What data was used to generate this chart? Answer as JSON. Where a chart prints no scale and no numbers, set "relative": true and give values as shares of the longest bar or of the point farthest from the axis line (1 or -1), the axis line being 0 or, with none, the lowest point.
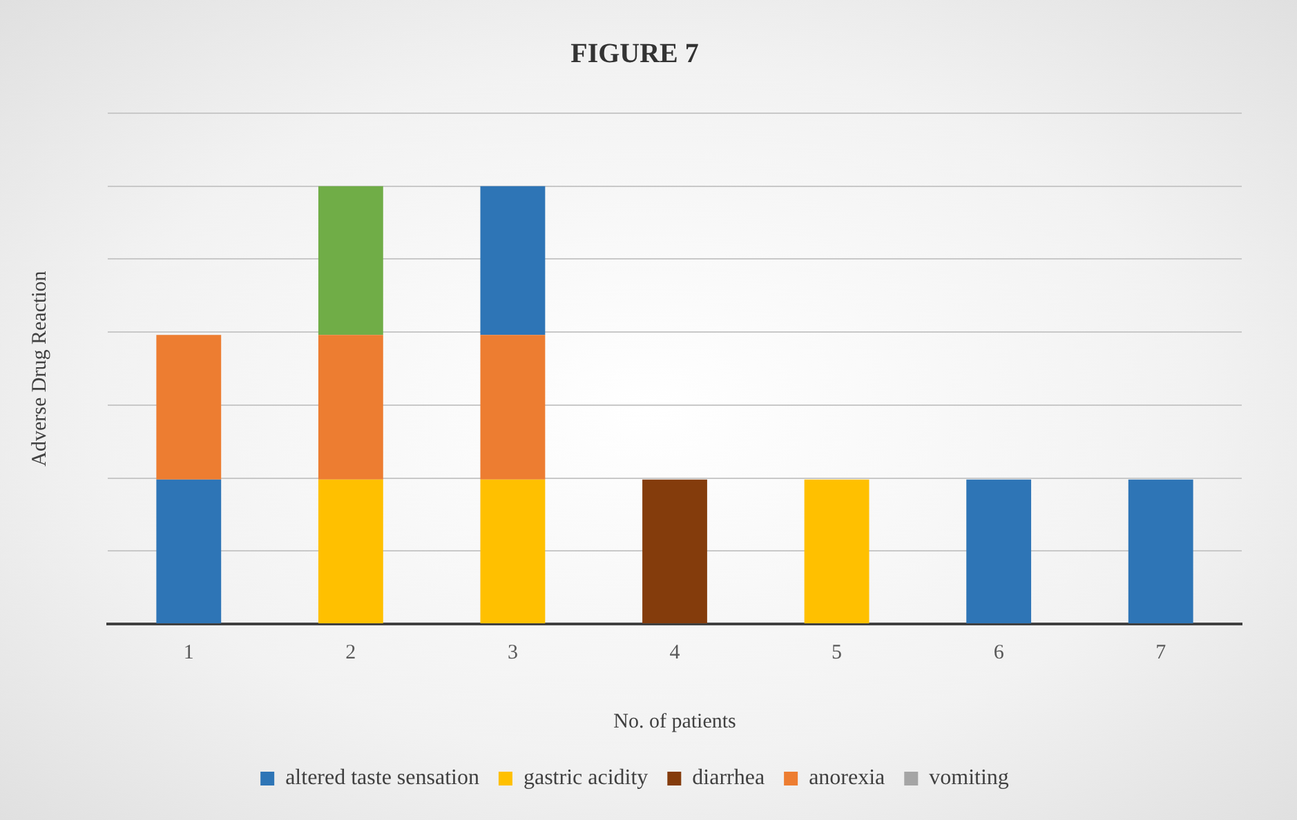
{
  "chart_data": {
    "type": "bar",
    "title": "FIGURE 7",
    "xlabel": "No. of patients",
    "ylabel": "Adverse Drug Reaction",
    "categories": [
      "1",
      "2",
      "3",
      "4",
      "5",
      "6",
      "7"
    ],
    "stacked": true,
    "relative": true,
    "grid": "y",
    "legend": "bottom",
    "series": [
      {
        "name": "altered taste sensation",
        "color": "#2e75b6",
        "values": [
          0.33,
          null,
          null,
          null,
          null,
          0.33,
          0.33
        ]
      },
      {
        "name": "gastric acidity",
        "color": "#ffc000",
        "values": [
          null,
          0.33,
          0.33,
          null,
          0.33,
          null,
          null
        ]
      },
      {
        "name": "diarrhea",
        "color": "#843c0c",
        "values": [
          null,
          null,
          null,
          0.33,
          null,
          null,
          null
        ]
      },
      {
        "name": "anorexia",
        "color": "#ed7d31",
        "values": [
          0.33,
          0.33,
          0.33,
          null,
          null,
          null,
          null
        ]
      },
      {
        "name": "vomiting",
        "color": "#a5a5a5",
        "values": [
          null,
          null,
          null,
          null,
          null,
          null,
          null
        ]
      },
      {
        "color": "#70ad47",
        "values": [
          null,
          0.34,
          null,
          null,
          null,
          null,
          null
        ]
      },
      {
        "color": "#2e75b6",
        "values": [
          null,
          null,
          0.34,
          null,
          null,
          null,
          null
        ]
      }
    ]
  }
}
